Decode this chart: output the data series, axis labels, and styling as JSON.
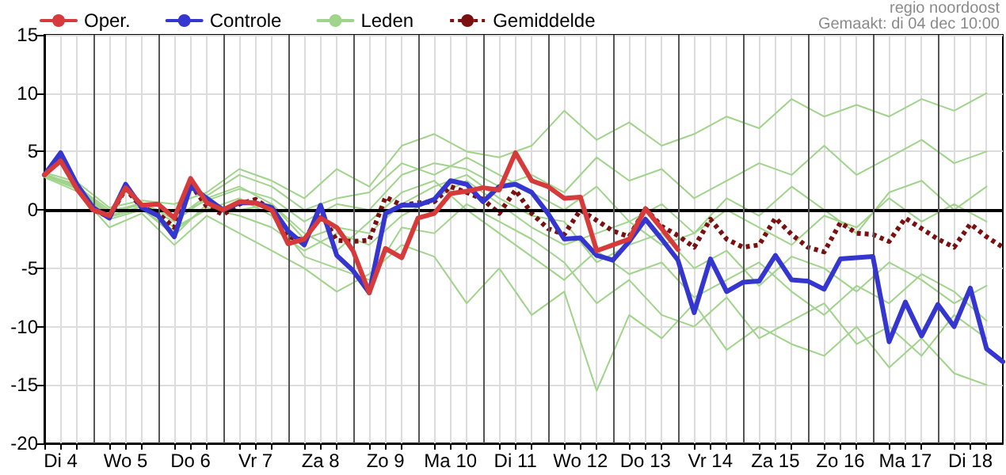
{
  "chart_data": {
    "type": "line",
    "x": [
      "--12-04T06:00",
      "--12-04T12:00",
      "--12-04T18:00",
      "--12-05T00:00",
      "--12-05T06:00",
      "--12-05T12:00",
      "--12-05T18:00",
      "--12-06T00:00",
      "--12-06T06:00",
      "--12-06T12:00",
      "--12-06T18:00",
      "--12-07T00:00",
      "--12-07T06:00",
      "--12-07T12:00",
      "--12-07T18:00",
      "--12-08T00:00",
      "--12-08T06:00",
      "--12-08T12:00",
      "--12-08T18:00",
      "--12-09T00:00",
      "--12-09T06:00",
      "--12-09T12:00",
      "--12-09T18:00",
      "--12-10T00:00",
      "--12-10T06:00",
      "--12-10T12:00",
      "--12-10T18:00",
      "--12-11T00:00",
      "--12-11T06:00",
      "--12-11T12:00",
      "--12-11T18:00",
      "--12-12T00:00",
      "--12-12T06:00",
      "--12-12T12:00",
      "--12-12T18:00",
      "--12-13T00:00",
      "--12-13T06:00",
      "--12-13T12:00",
      "--12-13T18:00",
      "--12-14T00:00",
      "--12-14T06:00",
      "--12-14T12:00",
      "--12-14T18:00",
      "--12-15T00:00",
      "--12-15T06:00",
      "--12-15T12:00",
      "--12-15T18:00",
      "--12-16T00:00",
      "--12-16T06:00",
      "--12-16T12:00",
      "--12-16T18:00",
      "--12-17T00:00",
      "--12-17T06:00",
      "--12-17T12:00",
      "--12-17T18:00",
      "--12-18T00:00",
      "--12-18T06:00",
      "--12-18T12:00",
      "--12-18T18:00",
      "--12-19T00:00"
    ],
    "series": [
      {
        "name": "Oper.",
        "color": "#d63a3a",
        "values": [
          3.0,
          4.2,
          1.8,
          0.0,
          -0.5,
          1.9,
          0.4,
          0.5,
          -0.7,
          2.7,
          0.6,
          0.0,
          0.7,
          0.6,
          0.0,
          -2.9,
          -2.5,
          -0.7,
          -1.5,
          -3.5,
          -7.1,
          -3.3,
          -4.1,
          -0.7,
          -0.3,
          1.4,
          1.6,
          1.9,
          1.7,
          4.9,
          2.5,
          2.0,
          1.0,
          1.1,
          -3.5,
          -3.0,
          -2.5,
          0.1,
          -1.6,
          -3.4,
          null,
          null,
          null,
          null,
          null,
          null,
          null,
          null,
          null,
          null,
          null,
          null,
          null,
          null,
          null,
          null,
          null,
          null,
          null,
          null
        ]
      },
      {
        "name": "Controle",
        "color": "#3535d0",
        "values": [
          3.0,
          4.9,
          2.2,
          0.2,
          -0.7,
          2.2,
          0.2,
          -0.5,
          -2.3,
          2.0,
          1.0,
          0.0,
          0.6,
          0.6,
          0.2,
          -1.8,
          -3.0,
          0.4,
          -3.9,
          -5.2,
          -7.1,
          -0.3,
          0.4,
          0.4,
          0.9,
          2.5,
          2.2,
          0.7,
          2.0,
          2.2,
          1.5,
          -0.3,
          -2.5,
          -2.4,
          -3.9,
          -4.3,
          -2.7,
          -0.8,
          -2.5,
          -4.3,
          -8.8,
          -4.2,
          -7.0,
          -6.2,
          -6.1,
          -3.9,
          -6.0,
          -6.1,
          -6.8,
          -4.2,
          -4.1,
          -4.0,
          -11.3,
          -7.9,
          -10.8,
          -8.1,
          -10.0,
          -6.7,
          -11.9,
          -13.0
        ]
      },
      {
        "name": "Leden",
        "color": "#9fd48a",
        "x": [
          "--12-04T06:00",
          "--12-04T18:00",
          "--12-05T06:00",
          "--12-05T18:00",
          "--12-06T06:00",
          "--12-06T18:00",
          "--12-07T06:00",
          "--12-07T18:00",
          "--12-08T06:00",
          "--12-08T18:00",
          "--12-09T06:00",
          "--12-09T18:00",
          "--12-10T06:00",
          "--12-10T18:00",
          "--12-11T06:00",
          "--12-11T18:00",
          "--12-12T06:00",
          "--12-12T18:00",
          "--12-13T06:00",
          "--12-13T18:00",
          "--12-14T06:00",
          "--12-14T18:00",
          "--12-15T06:00",
          "--12-15T18:00",
          "--12-16T06:00",
          "--12-16T18:00",
          "--12-17T06:00",
          "--12-17T18:00",
          "--12-18T06:00",
          "--12-18T18:00"
        ],
        "values": [
          3.2,
          2.4,
          0.2,
          0.8,
          0.5,
          1.5,
          3.5,
          2.5,
          1.0,
          3.5,
          2.0,
          5.5,
          6.5,
          5.0,
          4.5,
          5.5,
          8.5,
          6.0,
          7.5,
          5.5,
          6.5,
          8.0,
          7.0,
          9.5,
          8.0,
          9.0,
          8.0,
          9.5,
          8.5,
          10.0
        ]
      },
      {
        "color": "#9fd48a",
        "x": [
          "--12-04T06:00",
          "--12-04T18:00",
          "--12-05T06:00",
          "--12-05T18:00",
          "--12-06T06:00",
          "--12-06T18:00",
          "--12-07T06:00",
          "--12-07T18:00",
          "--12-08T06:00",
          "--12-08T18:00",
          "--12-09T06:00",
          "--12-09T18:00",
          "--12-10T06:00",
          "--12-10T18:00",
          "--12-11T06:00",
          "--12-11T18:00",
          "--12-12T06:00",
          "--12-12T18:00",
          "--12-13T06:00",
          "--12-13T18:00",
          "--12-14T06:00",
          "--12-14T18:00",
          "--12-15T06:00",
          "--12-15T18:00",
          "--12-16T06:00",
          "--12-16T18:00",
          "--12-17T06:00",
          "--12-17T18:00",
          "--12-18T06:00",
          "--12-18T18:00"
        ],
        "values": [
          3.0,
          2.1,
          -0.3,
          0.5,
          -0.5,
          0.8,
          1.8,
          1.0,
          -1.0,
          0.5,
          0.0,
          3.0,
          4.0,
          3.5,
          2.0,
          3.0,
          1.5,
          4.5,
          2.5,
          3.5,
          1.0,
          2.5,
          4.0,
          3.0,
          5.5,
          3.0,
          4.5,
          6.0,
          4.0,
          5.0
        ]
      },
      {
        "color": "#9fd48a",
        "x": [
          "--12-04T06:00",
          "--12-04T18:00",
          "--12-05T06:00",
          "--12-05T18:00",
          "--12-06T06:00",
          "--12-06T18:00",
          "--12-07T06:00",
          "--12-07T18:00",
          "--12-08T06:00",
          "--12-08T18:00",
          "--12-09T06:00",
          "--12-09T18:00",
          "--12-10T06:00",
          "--12-10T18:00",
          "--12-11T06:00",
          "--12-11T18:00",
          "--12-12T06:00",
          "--12-12T18:00",
          "--12-13T06:00",
          "--12-13T18:00",
          "--12-14T06:00",
          "--12-14T18:00",
          "--12-15T06:00",
          "--12-15T18:00",
          "--12-16T06:00",
          "--12-16T18:00",
          "--12-17T06:00",
          "--12-17T18:00",
          "--12-18T06:00",
          "--12-18T18:00"
        ],
        "values": [
          2.9,
          1.9,
          -0.8,
          0.0,
          -1.8,
          0.2,
          -0.5,
          -1.5,
          -3.5,
          -2.0,
          -3.0,
          -0.5,
          1.0,
          2.5,
          0.5,
          -1.5,
          -3.0,
          -2.0,
          -1.0,
          -3.0,
          -2.0,
          0.0,
          -1.5,
          -3.0,
          -0.5,
          -1.5,
          1.0,
          -1.0,
          0.5,
          -1.0
        ]
      },
      {
        "color": "#9fd48a",
        "x": [
          "--12-04T06:00",
          "--12-04T18:00",
          "--12-05T06:00",
          "--12-05T18:00",
          "--12-06T06:00",
          "--12-06T18:00",
          "--12-07T06:00",
          "--12-07T18:00",
          "--12-08T06:00",
          "--12-08T18:00",
          "--12-09T06:00",
          "--12-09T18:00",
          "--12-10T06:00",
          "--12-10T18:00",
          "--12-11T06:00",
          "--12-11T18:00",
          "--12-12T06:00",
          "--12-12T18:00",
          "--12-13T06:00",
          "--12-13T18:00",
          "--12-14T06:00",
          "--12-14T18:00",
          "--12-15T06:00",
          "--12-15T18:00",
          "--12-16T06:00",
          "--12-16T18:00",
          "--12-17T06:00",
          "--12-17T18:00",
          "--12-18T06:00",
          "--12-18T18:00"
        ],
        "values": [
          2.8,
          1.6,
          -1.5,
          -0.3,
          -3.0,
          -0.5,
          -2.0,
          -3.5,
          -5.0,
          -7.0,
          -5.5,
          -3.0,
          -4.0,
          -8.0,
          -5.0,
          -9.0,
          -7.0,
          -15.5,
          -9.0,
          -11.0,
          -8.0,
          -12.0,
          -10.0,
          -11.5,
          -12.5,
          -10.0,
          -13.5,
          -11.0,
          -14.0,
          -15.0
        ]
      },
      {
        "color": "#9fd48a",
        "x": [
          "--12-04T06:00",
          "--12-04T18:00",
          "--12-05T06:00",
          "--12-05T18:00",
          "--12-06T06:00",
          "--12-06T18:00",
          "--12-07T06:00",
          "--12-07T18:00",
          "--12-08T06:00",
          "--12-08T18:00",
          "--12-09T06:00",
          "--12-09T18:00",
          "--12-10T06:00",
          "--12-10T18:00",
          "--12-11T06:00",
          "--12-11T18:00",
          "--12-12T06:00",
          "--12-12T18:00",
          "--12-13T06:00",
          "--12-13T18:00",
          "--12-14T06:00",
          "--12-14T18:00",
          "--12-15T06:00",
          "--12-15T18:00",
          "--12-16T06:00",
          "--12-16T18:00",
          "--12-17T06:00",
          "--12-17T18:00",
          "--12-18T06:00",
          "--12-18T18:00"
        ],
        "values": [
          3.1,
          2.0,
          0.0,
          0.4,
          -1.0,
          1.0,
          2.0,
          0.5,
          -2.0,
          -3.5,
          -1.0,
          1.5,
          2.5,
          0.0,
          -2.0,
          -4.0,
          -6.0,
          -3.5,
          -5.5,
          -4.5,
          -7.5,
          -6.0,
          -4.5,
          -7.0,
          -9.0,
          -6.5,
          -8.0,
          -5.5,
          -7.0,
          -9.5
        ]
      },
      {
        "color": "#9fd48a",
        "x": [
          "--12-04T06:00",
          "--12-04T18:00",
          "--12-05T06:00",
          "--12-05T18:00",
          "--12-06T06:00",
          "--12-06T18:00",
          "--12-07T06:00",
          "--12-07T18:00",
          "--12-08T06:00",
          "--12-08T18:00",
          "--12-09T06:00",
          "--12-09T18:00",
          "--12-10T06:00",
          "--12-10T18:00",
          "--12-11T06:00",
          "--12-11T18:00",
          "--12-12T06:00",
          "--12-12T18:00",
          "--12-13T06:00",
          "--12-13T18:00",
          "--12-14T06:00",
          "--12-14T18:00",
          "--12-15T06:00",
          "--12-15T18:00",
          "--12-16T06:00",
          "--12-16T18:00",
          "--12-17T06:00",
          "--12-17T18:00",
          "--12-18T06:00",
          "--12-18T18:00"
        ],
        "values": [
          3.0,
          2.2,
          -0.5,
          0.3,
          -1.5,
          0.0,
          1.0,
          -0.5,
          -4.0,
          -5.0,
          -6.0,
          -1.5,
          -2.0,
          0.5,
          -1.0,
          -2.5,
          -4.5,
          -8.0,
          -6.0,
          -9.0,
          -10.0,
          -7.5,
          -11.0,
          -9.5,
          -8.0,
          -11.5,
          -10.0,
          -12.5,
          -9.0,
          -11.0
        ]
      },
      {
        "color": "#9fd48a",
        "x": [
          "--12-04T06:00",
          "--12-04T18:00",
          "--12-05T06:00",
          "--12-05T18:00",
          "--12-06T06:00",
          "--12-06T18:00",
          "--12-07T06:00",
          "--12-07T18:00",
          "--12-08T06:00",
          "--12-08T18:00",
          "--12-09T06:00",
          "--12-09T18:00",
          "--12-10T06:00",
          "--12-10T18:00",
          "--12-11T06:00",
          "--12-11T18:00",
          "--12-12T06:00",
          "--12-12T18:00",
          "--12-13T06:00",
          "--12-13T18:00",
          "--12-14T06:00",
          "--12-14T18:00",
          "--12-15T06:00",
          "--12-15T18:00",
          "--12-16T06:00",
          "--12-16T18:00",
          "--12-17T06:00",
          "--12-17T18:00",
          "--12-18T06:00",
          "--12-18T18:00"
        ],
        "values": [
          2.9,
          1.8,
          -0.2,
          0.6,
          -0.8,
          1.2,
          3.0,
          2.0,
          0.0,
          1.0,
          1.5,
          4.0,
          3.0,
          4.5,
          3.0,
          1.5,
          0.0,
          2.0,
          -1.0,
          0.5,
          -2.0,
          1.0,
          -0.5,
          2.0,
          0.0,
          -2.0,
          1.5,
          2.5,
          0.0,
          2.0
        ]
      },
      {
        "color": "#9fd48a",
        "x": [
          "--12-04T06:00",
          "--12-04T18:00",
          "--12-05T06:00",
          "--12-05T18:00",
          "--12-06T06:00",
          "--12-06T18:00",
          "--12-07T06:00",
          "--12-07T18:00",
          "--12-08T06:00",
          "--12-08T18:00",
          "--12-09T06:00",
          "--12-09T18:00",
          "--12-10T06:00",
          "--12-10T18:00",
          "--12-11T06:00",
          "--12-11T18:00",
          "--12-12T06:00",
          "--12-12T18:00",
          "--12-13T06:00",
          "--12-13T18:00",
          "--12-14T06:00",
          "--12-14T18:00",
          "--12-15T06:00",
          "--12-15T18:00",
          "--12-16T06:00",
          "--12-16T18:00",
          "--12-17T06:00",
          "--12-17T18:00",
          "--12-18T06:00",
          "--12-18T18:00"
        ],
        "values": [
          3.0,
          2.0,
          -0.6,
          0.1,
          -2.2,
          0.5,
          0.0,
          0.5,
          -2.5,
          -1.5,
          -2.0,
          0.5,
          2.0,
          3.0,
          1.0,
          -0.5,
          -1.0,
          -4.5,
          -3.0,
          -2.0,
          -5.0,
          -3.5,
          -6.5,
          -4.0,
          -5.0,
          -7.0,
          -4.5,
          -6.0,
          -8.0,
          -6.5
        ]
      },
      {
        "name": "Gemiddelde",
        "color": "#7a1010",
        "line_style": "dotted",
        "values": [
          3.0,
          4.5,
          2.0,
          0.0,
          -0.6,
          1.8,
          0.2,
          -0.3,
          -1.5,
          2.2,
          0.3,
          -0.4,
          0.5,
          0.9,
          0.0,
          -2.3,
          -2.6,
          -0.3,
          -2.6,
          -2.7,
          -2.6,
          1.1,
          0.4,
          0.6,
          0.7,
          2.0,
          1.5,
          0.9,
          -0.3,
          1.7,
          -0.3,
          -1.6,
          -2.1,
          0.0,
          -0.9,
          -1.8,
          -2.3,
          0.1,
          -1.4,
          -2.2,
          -3.2,
          -0.8,
          -2.5,
          -3.2,
          -3.0,
          -0.7,
          -2.1,
          -3.2,
          -3.6,
          -1.1,
          -2.0,
          -2.1,
          -2.7,
          -0.7,
          -1.6,
          -2.5,
          -3.2,
          -1.2,
          -2.3,
          -3.2
        ]
      }
    ],
    "xlim": [
      "--12-04T06:00",
      "--12-19T00:00"
    ],
    "xticks": [
      {
        "value": "--12-04T06:00",
        "label": null
      },
      {
        "value": "--12-04T12:00",
        "label": "Di 4"
      },
      {
        "value": "--12-04T18:00",
        "label": null
      },
      {
        "value": "--12-05T06:00",
        "label": null
      },
      {
        "value": "--12-05T12:00",
        "label": "Wo 5"
      },
      {
        "value": "--12-05T18:00",
        "label": null
      },
      {
        "value": "--12-06T06:00",
        "label": null
      },
      {
        "value": "--12-06T12:00",
        "label": "Do 6"
      },
      {
        "value": "--12-06T18:00",
        "label": null
      },
      {
        "value": "--12-07T06:00",
        "label": null
      },
      {
        "value": "--12-07T12:00",
        "label": "Vr 7"
      },
      {
        "value": "--12-07T18:00",
        "label": null
      },
      {
        "value": "--12-08T06:00",
        "label": null
      },
      {
        "value": "--12-08T12:00",
        "label": "Za 8"
      },
      {
        "value": "--12-08T18:00",
        "label": null
      },
      {
        "value": "--12-09T06:00",
        "label": null
      },
      {
        "value": "--12-09T12:00",
        "label": "Zo 9"
      },
      {
        "value": "--12-09T18:00",
        "label": null
      },
      {
        "value": "--12-10T06:00",
        "label": null
      },
      {
        "value": "--12-10T12:00",
        "label": "Ma 10"
      },
      {
        "value": "--12-10T18:00",
        "label": null
      },
      {
        "value": "--12-11T06:00",
        "label": null
      },
      {
        "value": "--12-11T12:00",
        "label": "Di 11"
      },
      {
        "value": "--12-11T18:00",
        "label": null
      },
      {
        "value": "--12-12T06:00",
        "label": null
      },
      {
        "value": "--12-12T12:00",
        "label": "Wo 12"
      },
      {
        "value": "--12-12T18:00",
        "label": null
      },
      {
        "value": "--12-13T06:00",
        "label": null
      },
      {
        "value": "--12-13T12:00",
        "label": "Do 13"
      },
      {
        "value": "--12-13T18:00",
        "label": null
      },
      {
        "value": "--12-14T06:00",
        "label": null
      },
      {
        "value": "--12-14T12:00",
        "label": "Vr 14"
      },
      {
        "value": "--12-14T18:00",
        "label": null
      },
      {
        "value": "--12-15T06:00",
        "label": null
      },
      {
        "value": "--12-15T12:00",
        "label": "Za 15"
      },
      {
        "value": "--12-15T18:00",
        "label": null
      },
      {
        "value": "--12-16T06:00",
        "label": null
      },
      {
        "value": "--12-16T12:00",
        "label": "Zo 16"
      },
      {
        "value": "--12-16T18:00",
        "label": null
      },
      {
        "value": "--12-17T06:00",
        "label": null
      },
      {
        "value": "--12-17T12:00",
        "label": "Ma 17"
      },
      {
        "value": "--12-17T18:00",
        "label": null
      },
      {
        "value": "--12-18T06:00",
        "label": null
      },
      {
        "value": "--12-18T12:00",
        "label": "Di 18"
      },
      {
        "value": "--12-18T18:00",
        "label": null
      }
    ],
    "ylim": [
      -20,
      15
    ],
    "yticks": [
      -20,
      -15,
      -10,
      -5,
      0,
      5,
      10,
      15
    ],
    "ref_lines": [
      {
        "axis": "y",
        "value": 0,
        "color": "#000000"
      },
      {
        "axis": "x",
        "value": "--12-05T00:00",
        "color": "#555555"
      },
      {
        "axis": "x",
        "value": "--12-06T00:00",
        "color": "#555555"
      },
      {
        "axis": "x",
        "value": "--12-07T00:00",
        "color": "#555555"
      },
      {
        "axis": "x",
        "value": "--12-08T00:00",
        "color": "#555555"
      },
      {
        "axis": "x",
        "value": "--12-09T00:00",
        "color": "#555555"
      },
      {
        "axis": "x",
        "value": "--12-10T00:00",
        "color": "#555555"
      },
      {
        "axis": "x",
        "value": "--12-11T00:00",
        "color": "#555555"
      },
      {
        "axis": "x",
        "value": "--12-12T00:00",
        "color": "#555555"
      },
      {
        "axis": "x",
        "value": "--12-13T00:00",
        "color": "#555555"
      },
      {
        "axis": "x",
        "value": "--12-14T00:00",
        "color": "#555555"
      },
      {
        "axis": "x",
        "value": "--12-15T00:00",
        "color": "#555555"
      },
      {
        "axis": "x",
        "value": "--12-16T00:00",
        "color": "#555555"
      },
      {
        "axis": "x",
        "value": "--12-17T00:00",
        "color": "#555555"
      },
      {
        "axis": "x",
        "value": "--12-18T00:00",
        "color": "#555555"
      }
    ],
    "annotations": [
      "regio noordoost",
      "Gemaakt: di 04 dec 10:00"
    ],
    "grid": true,
    "legend": "top left",
    "marker": "none",
    "line_style": "solid"
  }
}
